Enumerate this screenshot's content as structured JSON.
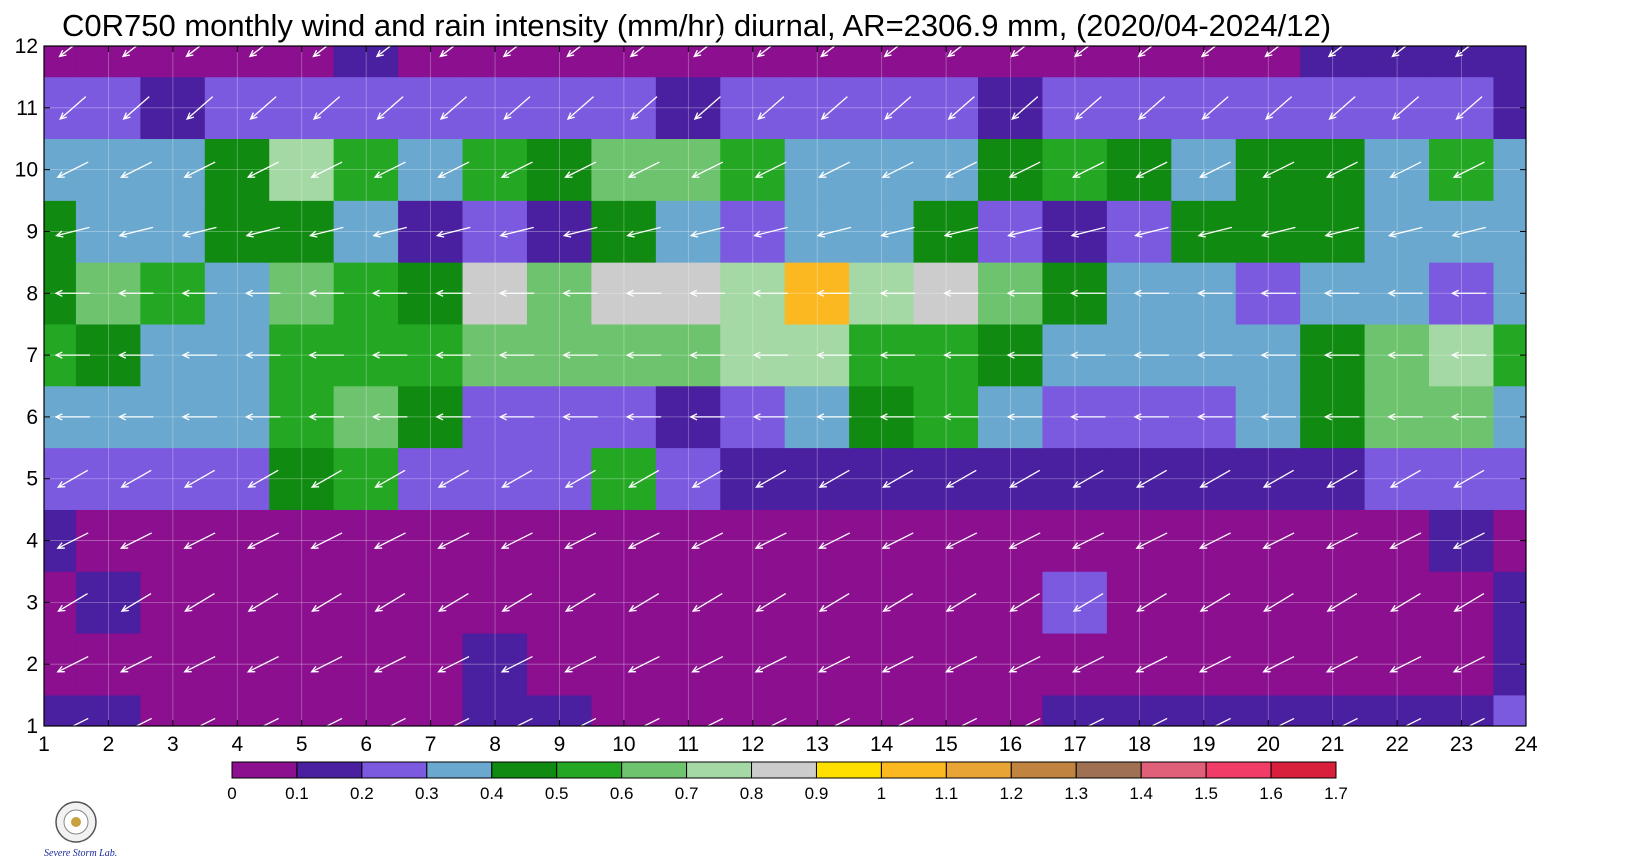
{
  "chart_data": {
    "type": "heatmap",
    "title": "C0R750 monthly wind and rain intensity (mm/hr) diurnal, AR=2306.9 mm, (2020/04-2024/12)",
    "xlabel": "",
    "ylabel": "",
    "x_ticks": [
      "1",
      "2",
      "3",
      "4",
      "5",
      "6",
      "7",
      "8",
      "9",
      "10",
      "11",
      "12",
      "13",
      "14",
      "15",
      "16",
      "17",
      "18",
      "19",
      "20",
      "21",
      "22",
      "23",
      "24"
    ],
    "y_ticks": [
      "1",
      "2",
      "3",
      "4",
      "5",
      "6",
      "7",
      "8",
      "9",
      "10",
      "11",
      "12"
    ],
    "xlim": [
      1,
      24
    ],
    "ylim": [
      1,
      12
    ],
    "grid": true,
    "colorbar": {
      "placement": "bottom",
      "levels": [
        "0",
        "0.1",
        "0.2",
        "0.3",
        "0.4",
        "0.5",
        "0.6",
        "0.7",
        "0.8",
        "0.9",
        "1",
        "1.1",
        "1.2",
        "1.3",
        "1.4",
        "1.5",
        "1.6",
        "1.7"
      ],
      "colors": [
        "#8b0f8f",
        "#4a1fa0",
        "#7b5ae0",
        "#6aa8cf",
        "#108a10",
        "#24a824",
        "#6ec46e",
        "#a4d8a4",
        "#cccccc",
        "#ffdf00",
        "#fcb820",
        "#e8a434",
        "#c08440",
        "#a07052",
        "#e0607a",
        "#f03c66",
        "#d8203c"
      ]
    },
    "rows": [
      {
        "month": 1,
        "values": [
          0.15,
          0.15,
          0.05,
          0.05,
          0.05,
          0.05,
          0.02,
          0.12,
          0.12,
          0.05,
          0.05,
          0.05,
          0.05,
          0.05,
          0.05,
          0.05,
          0.12,
          0.12,
          0.12,
          0.12,
          0.12,
          0.12,
          0.15,
          0.2
        ]
      },
      {
        "month": 2,
        "values": [
          0.05,
          0.05,
          0.05,
          0.05,
          0.05,
          0.05,
          0.05,
          0.12,
          0.05,
          0.05,
          0.05,
          0.05,
          0.05,
          0.05,
          0.05,
          0.05,
          0.05,
          0.05,
          0.05,
          0.05,
          0.05,
          0.05,
          0.05,
          0.12
        ]
      },
      {
        "month": 3,
        "values": [
          0.05,
          0.12,
          0.05,
          0.05,
          0.05,
          0.05,
          0.05,
          0.05,
          0.05,
          0.05,
          0.05,
          0.05,
          0.05,
          0.05,
          0.05,
          0.05,
          0.25,
          0.05,
          0.05,
          0.05,
          0.05,
          0.05,
          0.05,
          0.12
        ]
      },
      {
        "month": 4,
        "values": [
          0.12,
          0.05,
          0.05,
          0.05,
          0.05,
          0.05,
          0.05,
          0.05,
          0.05,
          0.05,
          0.05,
          0.05,
          0.05,
          0.05,
          0.05,
          0.05,
          0.05,
          0.05,
          0.05,
          0.05,
          0.05,
          0.05,
          0.12,
          0.05
        ]
      },
      {
        "month": 5,
        "values": [
          0.25,
          0.25,
          0.25,
          0.25,
          0.45,
          0.55,
          0.25,
          0.25,
          0.25,
          0.55,
          0.25,
          0.15,
          0.15,
          0.15,
          0.15,
          0.15,
          0.15,
          0.15,
          0.15,
          0.15,
          0.15,
          0.25,
          0.25,
          0.25
        ]
      },
      {
        "month": 6,
        "values": [
          0.35,
          0.35,
          0.35,
          0.35,
          0.55,
          0.65,
          0.45,
          0.25,
          0.25,
          0.25,
          0.15,
          0.25,
          0.35,
          0.45,
          0.55,
          0.35,
          0.25,
          0.25,
          0.25,
          0.35,
          0.45,
          0.65,
          0.65,
          0.35
        ]
      },
      {
        "month": 7,
        "values": [
          0.55,
          0.45,
          0.35,
          0.35,
          0.55,
          0.55,
          0.55,
          0.65,
          0.65,
          0.65,
          0.65,
          0.75,
          0.75,
          0.55,
          0.55,
          0.45,
          0.35,
          0.35,
          0.35,
          0.35,
          0.45,
          0.65,
          0.75,
          0.55
        ]
      },
      {
        "month": 8,
        "values": [
          0.45,
          0.65,
          0.55,
          0.35,
          0.65,
          0.55,
          0.45,
          0.85,
          0.65,
          0.85,
          0.85,
          0.75,
          1.05,
          0.75,
          0.85,
          0.65,
          0.45,
          0.35,
          0.35,
          0.25,
          0.35,
          0.35,
          0.25,
          0.35
        ]
      },
      {
        "month": 9,
        "values": [
          0.45,
          0.35,
          0.35,
          0.45,
          0.45,
          0.35,
          0.15,
          0.25,
          0.15,
          0.45,
          0.35,
          0.25,
          0.35,
          0.35,
          0.45,
          0.25,
          0.15,
          0.25,
          0.45,
          0.45,
          0.45,
          0.35,
          0.35,
          0.35
        ]
      },
      {
        "month": 10,
        "values": [
          0.35,
          0.35,
          0.35,
          0.45,
          0.75,
          0.55,
          0.35,
          0.55,
          0.45,
          0.65,
          0.65,
          0.55,
          0.35,
          0.35,
          0.35,
          0.45,
          0.55,
          0.45,
          0.35,
          0.45,
          0.45,
          0.35,
          0.55,
          0.35
        ]
      },
      {
        "month": 11,
        "values": [
          0.25,
          0.25,
          0.15,
          0.25,
          0.25,
          0.25,
          0.25,
          0.25,
          0.25,
          0.25,
          0.15,
          0.25,
          0.25,
          0.25,
          0.25,
          0.15,
          0.25,
          0.25,
          0.25,
          0.25,
          0.25,
          0.25,
          0.25,
          0.15
        ]
      },
      {
        "month": 12,
        "values": [
          0.05,
          0.05,
          0.05,
          0.05,
          0.05,
          0.12,
          0.05,
          0.05,
          0.05,
          0.05,
          0.05,
          0.05,
          0.05,
          0.05,
          0.05,
          0.05,
          0.05,
          0.05,
          0.05,
          0.05,
          0.12,
          0.12,
          0.12,
          0.12
        ]
      }
    ],
    "wind": {
      "note_direction": "arrows point toward lower-left at most grid points, left in summer months 6-8",
      "rows": [
        {
          "month": 1,
          "u": -1.0,
          "v": -0.5
        },
        {
          "month": 2,
          "u": -1.0,
          "v": -0.5
        },
        {
          "month": 3,
          "u": -1.0,
          "v": -0.6
        },
        {
          "month": 4,
          "u": -1.0,
          "v": -0.5
        },
        {
          "month": 5,
          "u": -0.7,
          "v": -0.4
        },
        {
          "month": 6,
          "u": -1.0,
          "v": 0.0
        },
        {
          "month": 7,
          "u": -1.0,
          "v": 0.0
        },
        {
          "month": 8,
          "u": -1.0,
          "v": 0.0
        },
        {
          "month": 9,
          "u": -0.8,
          "v": -0.2
        },
        {
          "month": 10,
          "u": -1.0,
          "v": -0.5
        },
        {
          "month": 11,
          "u": -0.8,
          "v": -0.7
        },
        {
          "month": 12,
          "u": -0.9,
          "v": -0.7
        }
      ]
    }
  },
  "logo": {
    "text": "Severe Storm Lab."
  }
}
